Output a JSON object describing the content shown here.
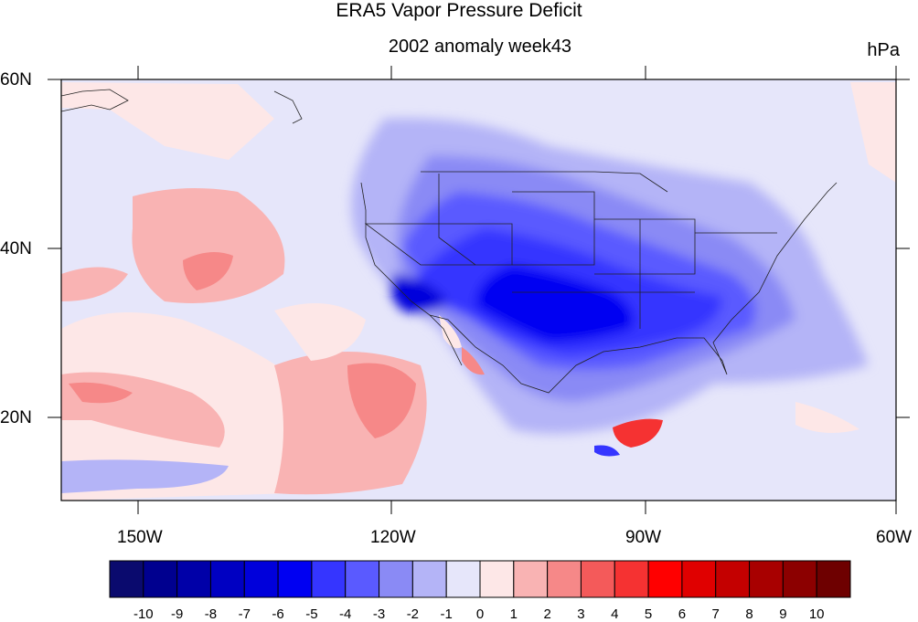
{
  "title": "ERA5 Vapor Pressure Deficit",
  "subtitle": "2002 anomaly week43",
  "units": "hPa",
  "lat_labels": [
    "60N",
    "40N",
    "20N"
  ],
  "lon_labels": [
    "150W",
    "120W",
    "90W",
    "60W"
  ],
  "colorbar": {
    "labels": [
      "-10",
      "-9",
      "-8",
      "-7",
      "-6",
      "-5",
      "-4",
      "-3",
      "-2",
      "-1",
      "0",
      "1",
      "2",
      "3",
      "4",
      "5",
      "6",
      "7",
      "8",
      "9",
      "10"
    ],
    "colors": [
      "#0a0a6e",
      "#00008f",
      "#0000a8",
      "#0000c2",
      "#0000db",
      "#0000f2",
      "#3535ff",
      "#5a5aff",
      "#8a8af5",
      "#b4b4f7",
      "#e6e6fa",
      "#fde7e7",
      "#f9b3b3",
      "#f68888",
      "#f45a5a",
      "#f53232",
      "#ff0000",
      "#e00000",
      "#c40000",
      "#a80000",
      "#8c0000",
      "#6e0000"
    ]
  }
}
